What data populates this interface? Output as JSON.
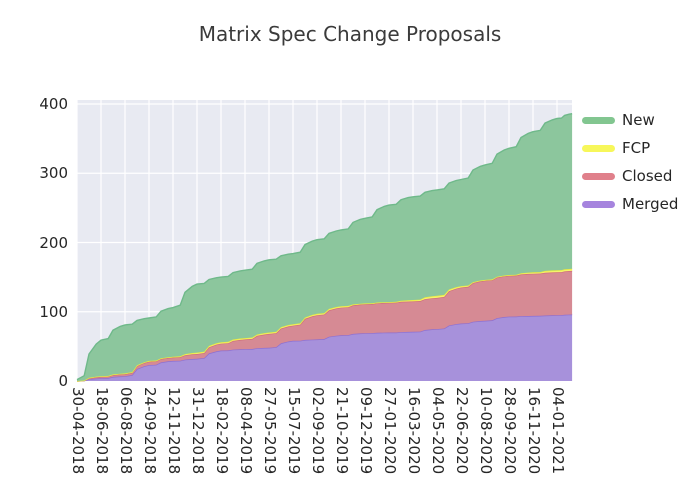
{
  "title": "Matrix Spec Change Proposals",
  "chart_data": {
    "type": "area",
    "stacked": true,
    "title": "Matrix Spec Change Proposals",
    "xlabel": "",
    "ylabel": "",
    "ylim": [
      0,
      402
    ],
    "y_ticks": [
      0,
      100,
      200,
      300,
      400
    ],
    "grid": true,
    "grid_color": "#ffffff",
    "panel_background": "#e8eaf2",
    "text_color": "#262626",
    "title_color": "#3b3b3b",
    "legend_position": "right",
    "x_tick_labels": [
      "30-04-2018",
      "18-06-2018",
      "06-08-2018",
      "24-09-2018",
      "12-11-2018",
      "31-12-2018",
      "18-02-2019",
      "08-04-2019",
      "27-05-2019",
      "15-07-2019",
      "02-09-2019",
      "21-10-2019",
      "09-12-2019",
      "27-01-2020",
      "16-03-2020",
      "04-05-2020",
      "22-06-2020",
      "10-08-2020",
      "28-09-2020",
      "16-11-2020",
      "04-01-2021"
    ],
    "x": [
      0,
      1,
      2,
      3,
      4,
      5,
      6,
      7,
      8,
      9,
      10,
      11,
      12,
      13,
      14,
      15,
      16,
      17,
      18,
      19,
      20,
      20.63
    ],
    "series": [
      {
        "name": "Merged",
        "fill": "#a791db",
        "edge": "#8d6fd1",
        "legend_color": "#a684de",
        "values": [
          0,
          4,
          7,
          23,
          29,
          32,
          44,
          46,
          48,
          58,
          60,
          66,
          69,
          70,
          71,
          75,
          83,
          87,
          93,
          94,
          95,
          96
        ]
      },
      {
        "name": "Closed",
        "fill": "#d68a94",
        "edge": "#d06e7c",
        "legend_color": "#e0808b",
        "values": [
          0,
          2,
          3,
          5,
          5,
          7,
          10,
          14,
          20,
          22,
          35,
          40,
          42,
          43,
          44,
          45,
          52,
          58,
          59,
          61,
          62,
          63
        ]
      },
      {
        "name": "FCP",
        "fill": "#f4f46e",
        "edge": "#e9e93f",
        "legend_color": "#f7f75a",
        "values": [
          0,
          1,
          1,
          1,
          1,
          2,
          2,
          2,
          2,
          2,
          2,
          2,
          1,
          1,
          2,
          3,
          2,
          1,
          1,
          2,
          3,
          3
        ]
      },
      {
        "name": "New",
        "fill": "#8cc69d",
        "edge": "#6fb98a",
        "legend_color": "#82c690",
        "values": [
          2,
          52,
          70,
          62,
          71,
          99,
          94,
          98,
          105,
          102,
          107,
          110,
          123,
          140,
          149,
          153,
          154,
          166,
          183,
          203,
          219,
          224
        ]
      }
    ],
    "legend_order": [
      "New",
      "FCP",
      "Closed",
      "Merged"
    ]
  }
}
